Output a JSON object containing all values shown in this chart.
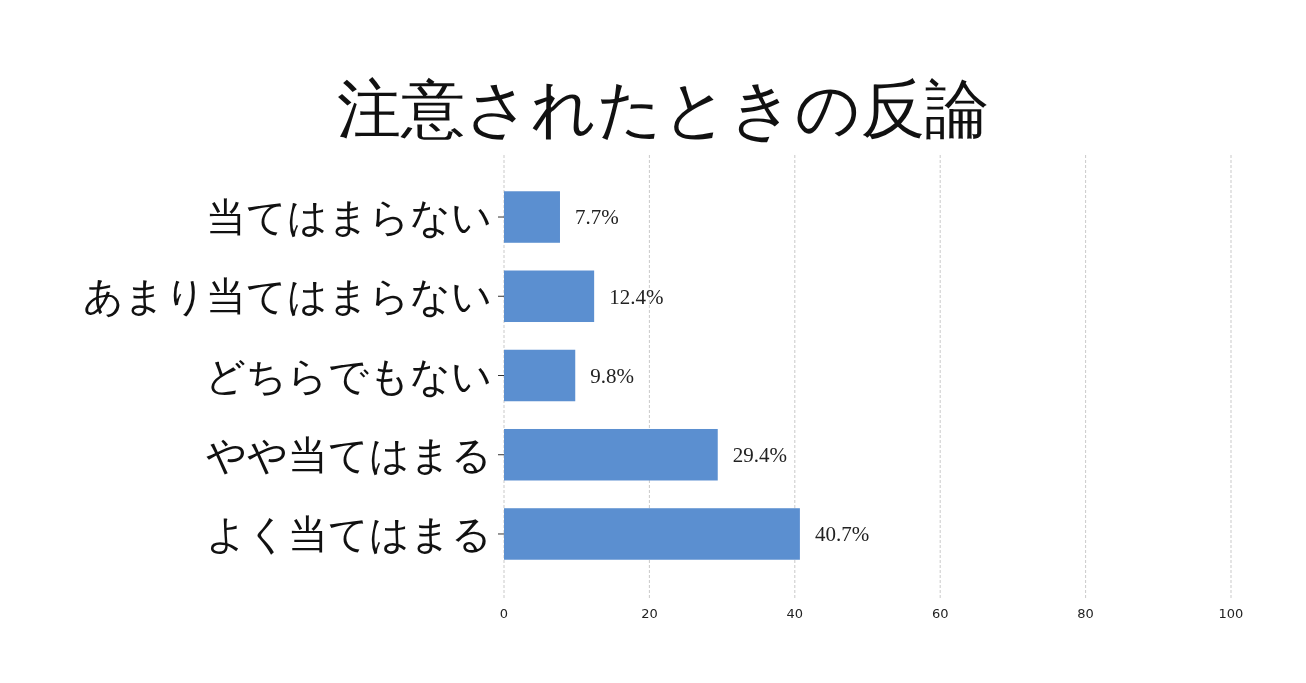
{
  "chart_data": {
    "type": "bar",
    "orientation": "horizontal",
    "title": "注意されたときの反論",
    "categories": [
      "当てはまらない",
      "あまり当てはまらない",
      "どちらでもない",
      "やや当てはまる",
      "よく当てはまる"
    ],
    "values": [
      7.7,
      12.4,
      9.8,
      29.4,
      40.7
    ],
    "value_labels": [
      "7.7%",
      "12.4%",
      "9.8%",
      "29.4%",
      "40.7%"
    ],
    "color": "#5b8fd0",
    "xlim": [
      0,
      100
    ],
    "xticks": [
      0,
      20,
      40,
      60,
      80,
      100
    ],
    "grid": "x"
  }
}
